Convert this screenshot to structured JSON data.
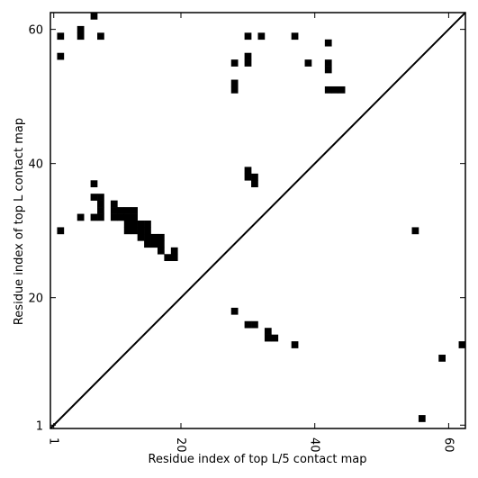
{
  "chart_data": {
    "type": "heatmap",
    "xlabel": "Residue index of top L/5 contact map",
    "ylabel": "Residue index of top L contact map",
    "xlim": [
      0.5,
      62.5
    ],
    "ylim": [
      0.5,
      62.5
    ],
    "x_ticks": [
      1,
      20,
      40,
      60
    ],
    "y_ticks": [
      1,
      20,
      40,
      60
    ],
    "diagonal": true,
    "color": "#000000",
    "upper_triangle_cells": [
      [
        7,
        62
      ],
      [
        2,
        59
      ],
      [
        5,
        59
      ],
      [
        8,
        59
      ],
      [
        30,
        59
      ],
      [
        32,
        59
      ],
      [
        37,
        59
      ],
      [
        5,
        60
      ],
      [
        42,
        58
      ],
      [
        2,
        56
      ],
      [
        30,
        56
      ],
      [
        28,
        55
      ],
      [
        30,
        55
      ],
      [
        39,
        55
      ],
      [
        42,
        55
      ],
      [
        42,
        54
      ],
      [
        28,
        52
      ],
      [
        28,
        51
      ],
      [
        42,
        51
      ],
      [
        43,
        51
      ],
      [
        44,
        51
      ],
      [
        30,
        39
      ],
      [
        30,
        38
      ],
      [
        31,
        38
      ],
      [
        31,
        37
      ],
      [
        7,
        37
      ],
      [
        7,
        35
      ],
      [
        8,
        35
      ],
      [
        8,
        34
      ],
      [
        10,
        34
      ],
      [
        8,
        33
      ],
      [
        10,
        33
      ],
      [
        11,
        33
      ],
      [
        12,
        33
      ],
      [
        13,
        33
      ],
      [
        5,
        32
      ],
      [
        7,
        32
      ],
      [
        8,
        32
      ],
      [
        10,
        32
      ],
      [
        11,
        32
      ],
      [
        12,
        32
      ],
      [
        13,
        32
      ],
      [
        12,
        31
      ],
      [
        13,
        31
      ],
      [
        14,
        31
      ],
      [
        15,
        31
      ],
      [
        2,
        30
      ],
      [
        12,
        30
      ],
      [
        13,
        30
      ],
      [
        14,
        30
      ],
      [
        15,
        30
      ],
      [
        14,
        29
      ],
      [
        15,
        29
      ],
      [
        16,
        29
      ],
      [
        17,
        29
      ],
      [
        15,
        28
      ],
      [
        16,
        28
      ],
      [
        17,
        28
      ],
      [
        17,
        27
      ],
      [
        19,
        27
      ],
      [
        18,
        26
      ],
      [
        19,
        26
      ]
    ],
    "lower_triangle_cells": [
      [
        28,
        18
      ],
      [
        30,
        16
      ],
      [
        31,
        16
      ],
      [
        33,
        15
      ],
      [
        33,
        14
      ],
      [
        34,
        14
      ],
      [
        37,
        13
      ],
      [
        62,
        13
      ],
      [
        59,
        11
      ],
      [
        56,
        2
      ],
      [
        55,
        30
      ]
    ]
  }
}
